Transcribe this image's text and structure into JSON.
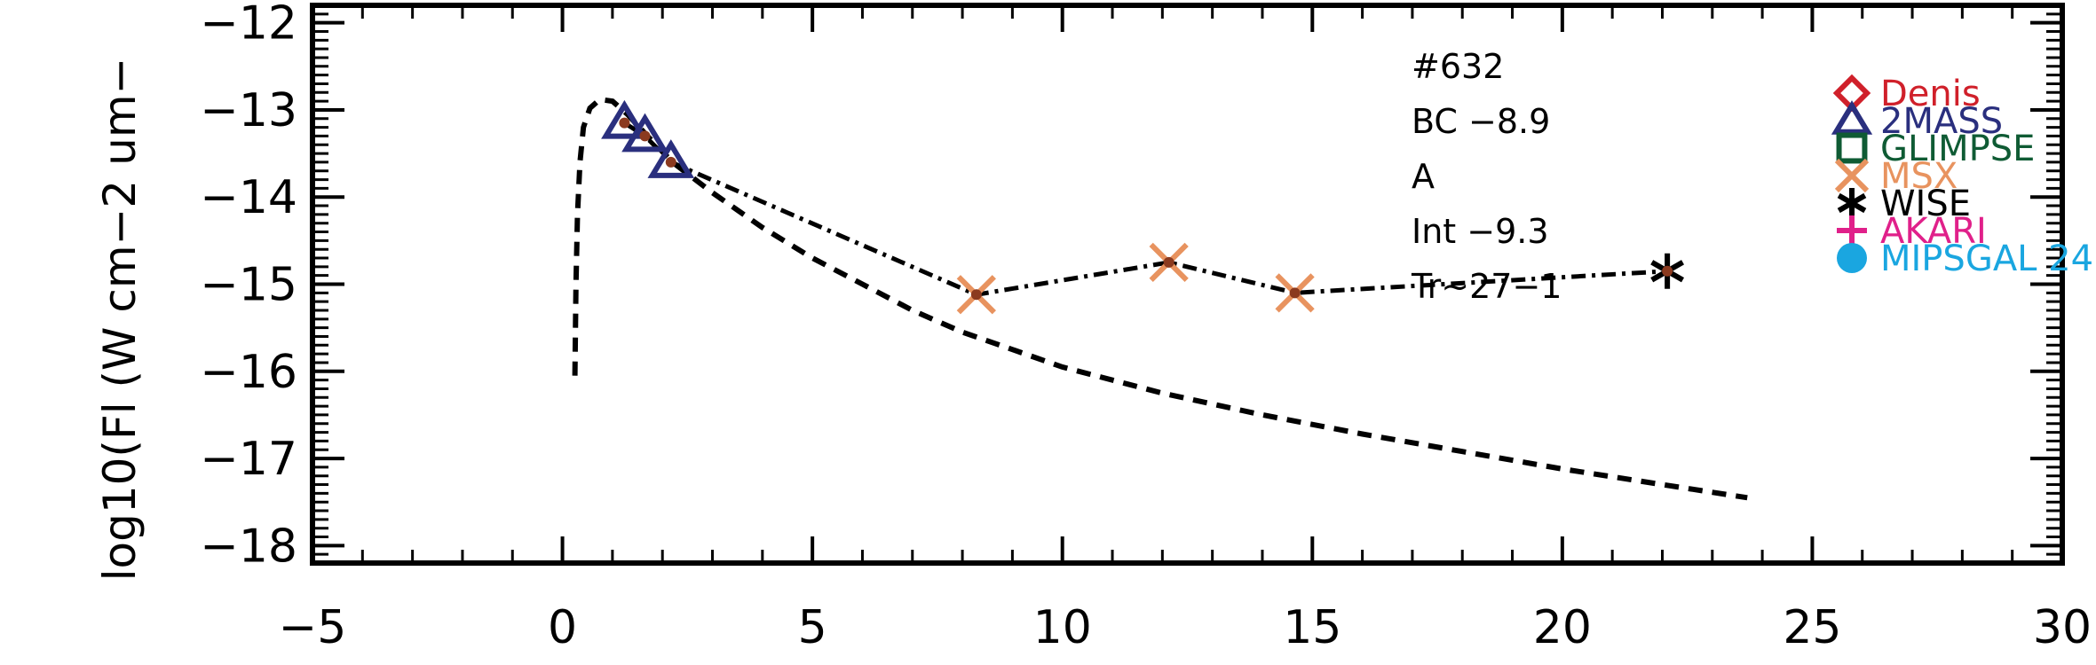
{
  "chart_data": {
    "type": "scatter",
    "ylabel": "log10(Fl (W cm−2 um−",
    "xlim": [
      -5,
      30
    ],
    "ylim": [
      -18.2,
      -11.8
    ],
    "x_ticks": [
      -5,
      0,
      5,
      10,
      15,
      20,
      25,
      30
    ],
    "x_tick_labels": [
      "−5",
      "0",
      "5",
      "10",
      "15",
      "20",
      "25",
      "30"
    ],
    "y_ticks": [
      -18,
      -17,
      -16,
      -15,
      -14,
      -13,
      -12
    ],
    "y_tick_labels": [
      "−18",
      "−17",
      "−16",
      "−15",
      "−14",
      "−13",
      "−12"
    ],
    "annotations": [
      "#632",
      "BC −8.9",
      "A",
      "Int −9.3",
      "Tr~27−1"
    ],
    "legend_placement": "right",
    "legend": [
      {
        "label": "Denis",
        "marker": "diamond",
        "color": "#d0202a"
      },
      {
        "label": "2MASS",
        "marker": "triangle",
        "color": "#2a2f7e"
      },
      {
        "label": "GLIMPSE",
        "marker": "square",
        "color": "#0f5b34"
      },
      {
        "label": "MSX",
        "marker": "x",
        "color": "#e8935f"
      },
      {
        "label": "WISE",
        "marker": "asterisk",
        "color": "#000000"
      },
      {
        "label": "AKARI",
        "marker": "plus",
        "color": "#e0208a"
      },
      {
        "label": "MIPSGAL 24",
        "marker": "circle",
        "color": "#1aa6e0"
      }
    ],
    "series": [
      {
        "name": "2MASS",
        "marker": "triangle",
        "color": "#2a2f7e",
        "points": [
          [
            1.24,
            -13.15
          ],
          [
            1.65,
            -13.3
          ],
          [
            2.17,
            -13.6
          ]
        ]
      },
      {
        "name": "MSX",
        "marker": "x",
        "color": "#e8935f",
        "points": [
          [
            8.28,
            -15.12
          ],
          [
            12.13,
            -14.75
          ],
          [
            14.65,
            -15.1
          ]
        ]
      },
      {
        "name": "WISE",
        "marker": "asterisk",
        "color": "#000000",
        "points": [
          [
            22.1,
            -14.85
          ]
        ]
      }
    ],
    "observed_sed": {
      "style": "dash-dot",
      "color": "#000000",
      "points": [
        [
          1.24,
          -13.15
        ],
        [
          1.65,
          -13.3
        ],
        [
          2.17,
          -13.6
        ],
        [
          8.28,
          -15.12
        ],
        [
          12.13,
          -14.75
        ],
        [
          14.65,
          -15.1
        ],
        [
          22.1,
          -14.85
        ]
      ]
    },
    "model_curve": {
      "style": "dashed",
      "color": "#000000",
      "points": [
        [
          0.25,
          -16.05
        ],
        [
          0.27,
          -15.0
        ],
        [
          0.3,
          -14.2
        ],
        [
          0.35,
          -13.6
        ],
        [
          0.42,
          -13.2
        ],
        [
          0.55,
          -12.98
        ],
        [
          0.75,
          -12.88
        ],
        [
          1.0,
          -12.9
        ],
        [
          1.3,
          -13.05
        ],
        [
          1.7,
          -13.3
        ],
        [
          2.2,
          -13.6
        ],
        [
          3.0,
          -13.95
        ],
        [
          4.0,
          -14.35
        ],
        [
          5.0,
          -14.7
        ],
        [
          6.0,
          -15.0
        ],
        [
          7.0,
          -15.3
        ],
        [
          8.0,
          -15.55
        ],
        [
          9.0,
          -15.75
        ],
        [
          10.0,
          -15.95
        ],
        [
          12.0,
          -16.25
        ],
        [
          14.0,
          -16.5
        ],
        [
          16.0,
          -16.72
        ],
        [
          18.0,
          -16.92
        ],
        [
          20.0,
          -17.12
        ],
        [
          22.0,
          -17.3
        ],
        [
          23.7,
          -17.45
        ]
      ]
    }
  }
}
